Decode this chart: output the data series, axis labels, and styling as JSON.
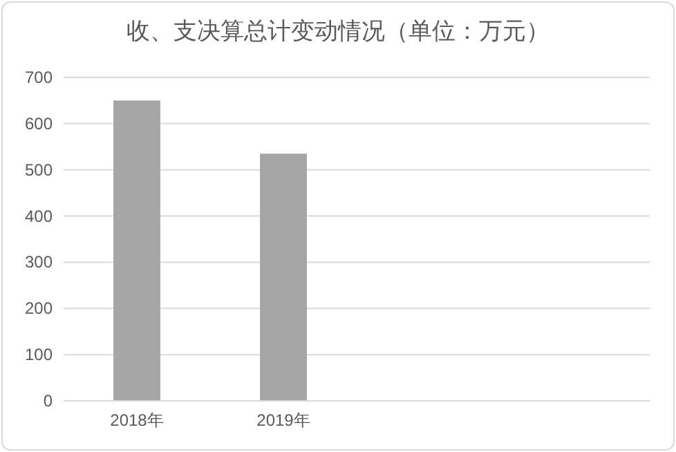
{
  "chart_data": {
    "type": "bar",
    "title": "收、支决算总计变动情况（单位：万元）",
    "categories": [
      "2018年",
      "2019年",
      null,
      null
    ],
    "values": [
      650,
      535,
      null,
      null
    ],
    "color": "#a5a5a5",
    "ylim": [
      0,
      700
    ],
    "yticks": [
      0,
      100,
      200,
      300,
      400,
      500,
      600,
      700
    ],
    "grid": "y"
  }
}
